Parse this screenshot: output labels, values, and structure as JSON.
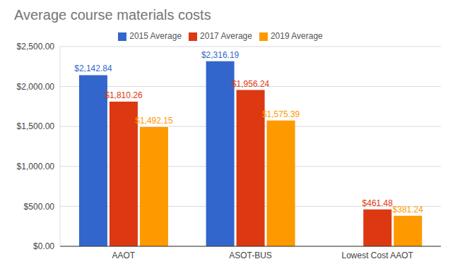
{
  "chart_data": {
    "type": "bar",
    "title": "Average course materials costs",
    "categories": [
      "AAOT",
      "ASOT-BUS",
      "Lowest Cost AAOT"
    ],
    "series": [
      {
        "name": "2015 Average",
        "color": "#3366cc",
        "values": [
          2142.84,
          2316.19,
          null
        ],
        "value_labels": [
          "$2,142.84",
          "$2,316.19",
          null
        ]
      },
      {
        "name": "2017 Average",
        "color": "#dc3912",
        "values": [
          1810.26,
          1956.24,
          461.48
        ],
        "value_labels": [
          "$1,810.26",
          "$1,956.24",
          "$461.48"
        ]
      },
      {
        "name": "2019 Average",
        "color": "#ff9900",
        "values": [
          1492.15,
          1575.39,
          381.24
        ],
        "value_labels": [
          "$1,492.15",
          "$1,575.39",
          "$381.24"
        ]
      }
    ],
    "ylim": [
      0,
      2500
    ],
    "yticks": [
      {
        "value": 0,
        "label": "$0.00"
      },
      {
        "value": 500,
        "label": "$500.00"
      },
      {
        "value": 1000,
        "label": "$1,000.00"
      },
      {
        "value": 1500,
        "label": "$1,500.00"
      },
      {
        "value": 2000,
        "label": "$2,000.00"
      },
      {
        "value": 2500,
        "label": "$2,500.00"
      }
    ],
    "grid": true,
    "legend": "top",
    "data_labels": true
  }
}
